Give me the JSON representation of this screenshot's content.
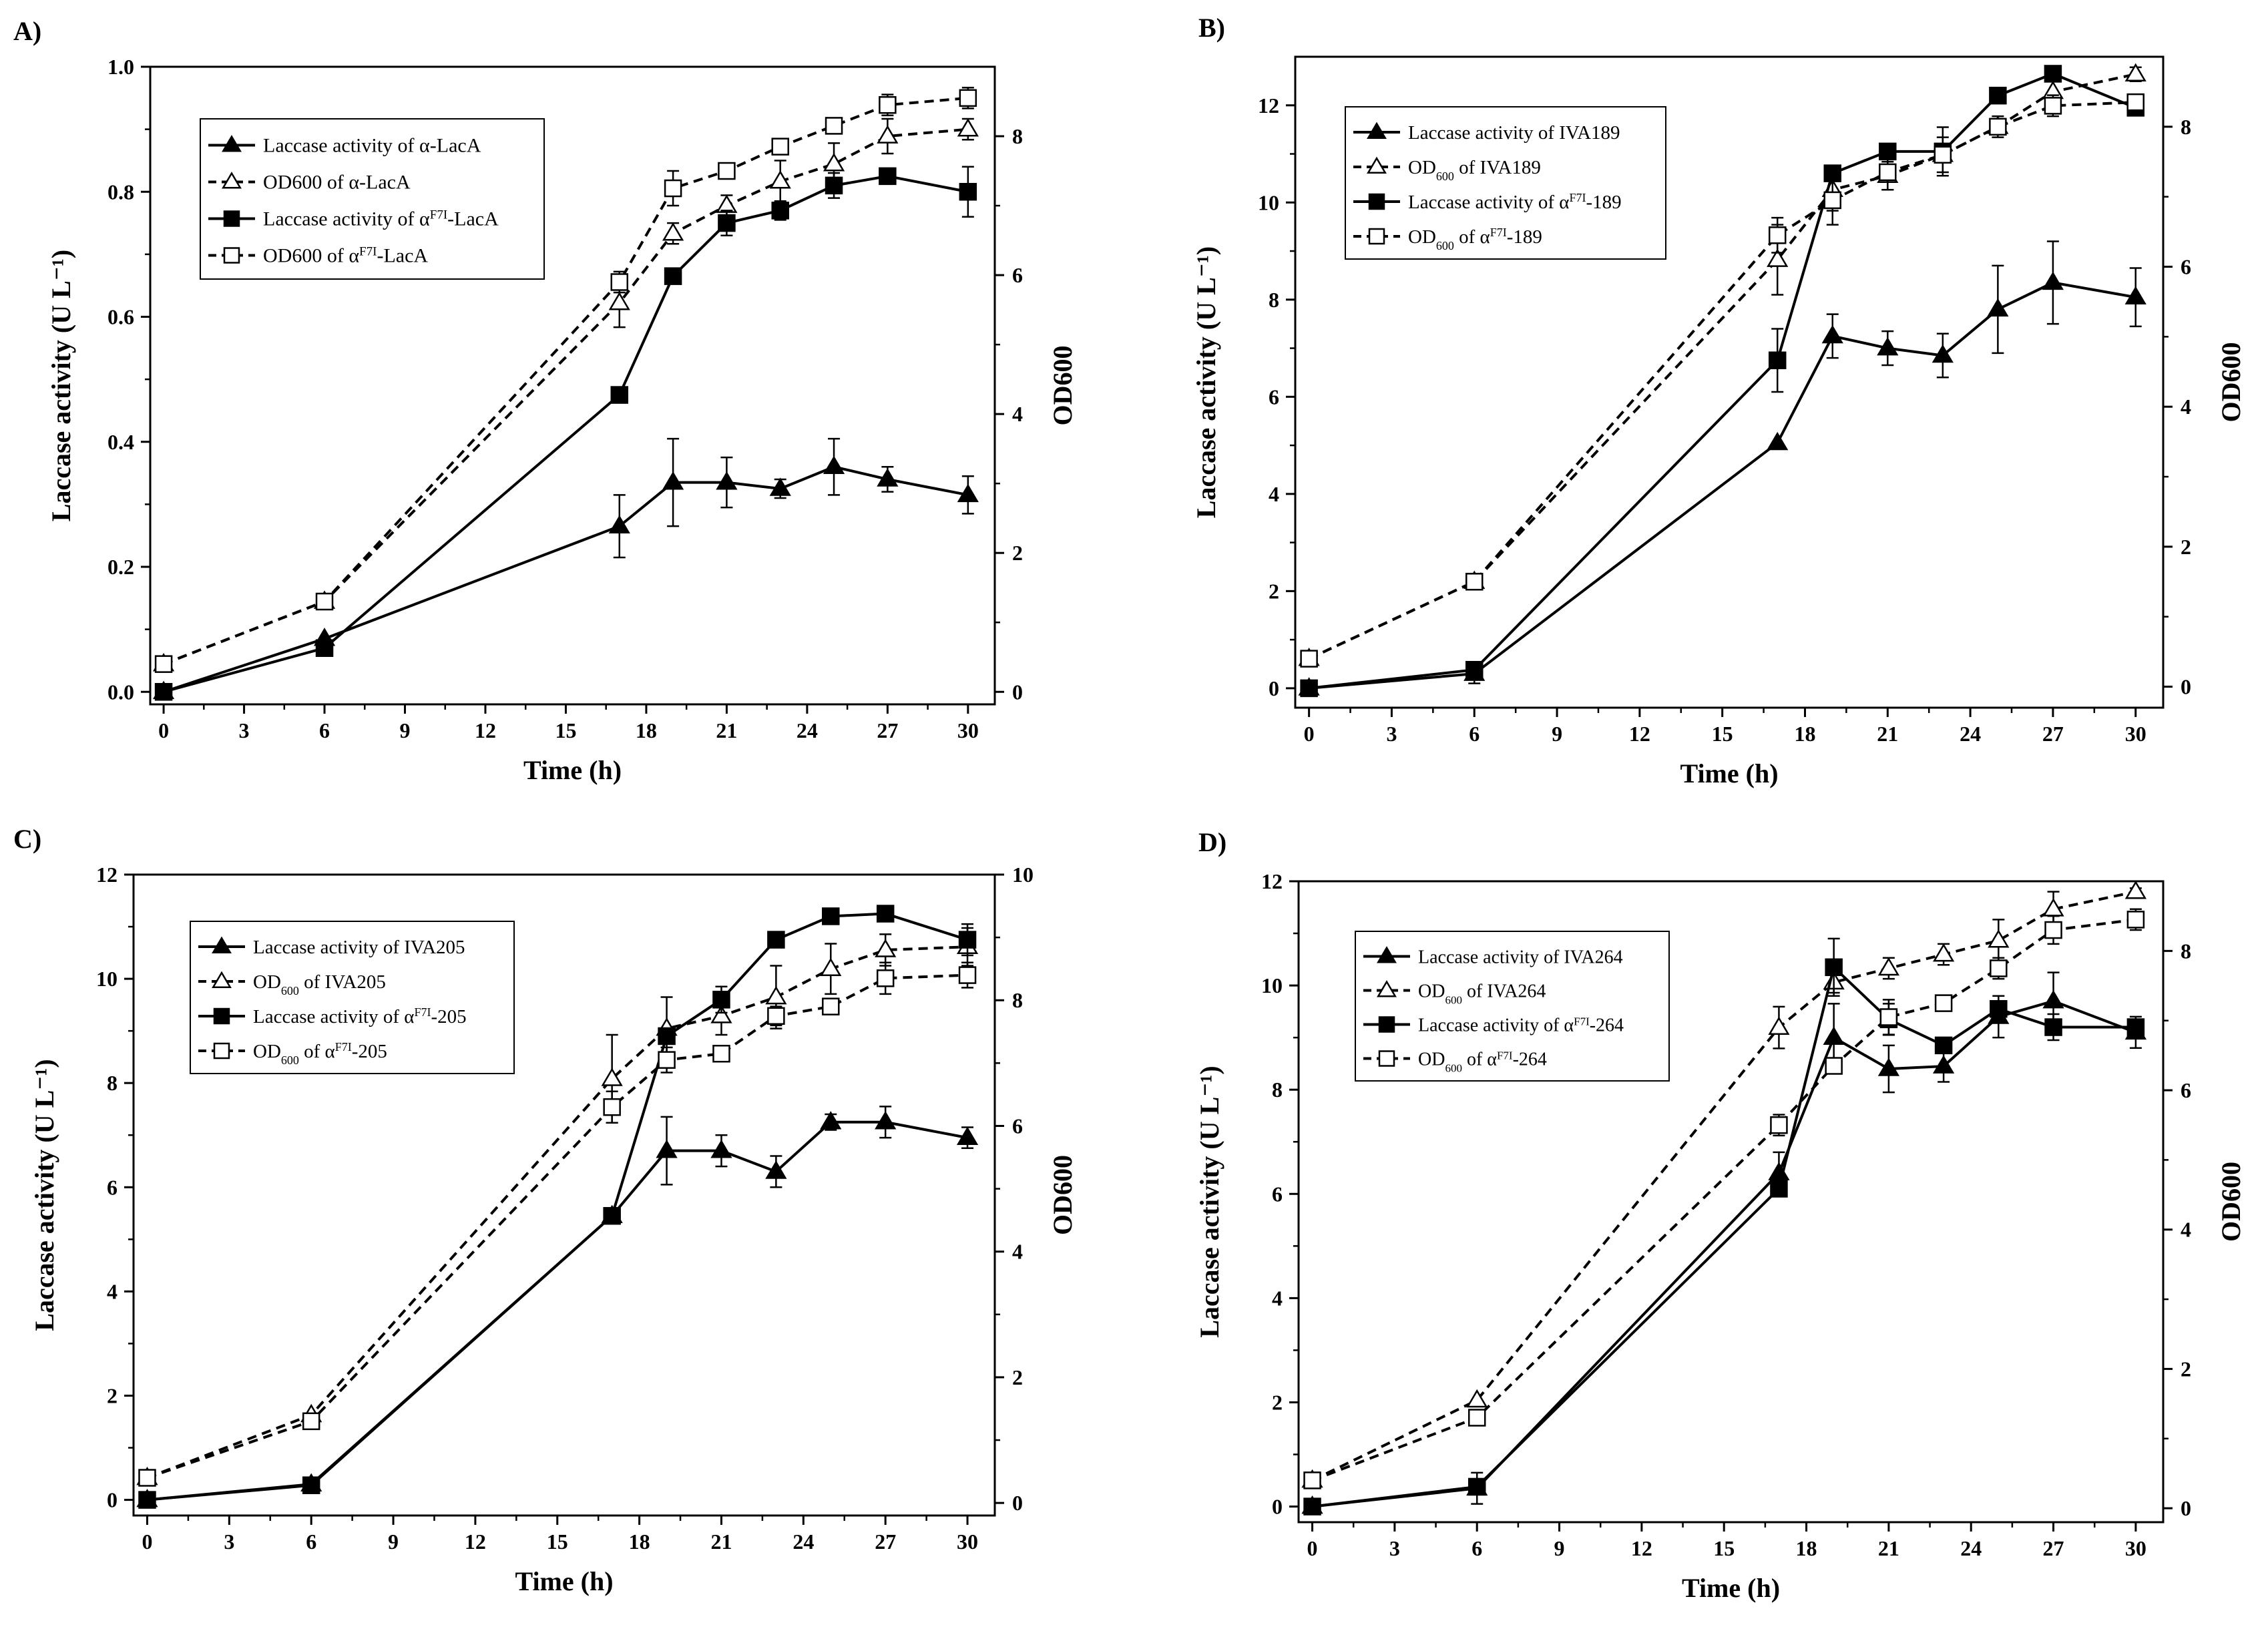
{
  "figure": {
    "colors": {
      "ink": "#000000",
      "background": "#ffffff"
    }
  },
  "chart_data": [
    {
      "type": "line",
      "panel_label": "A)",
      "xlabel": "Time (h)",
      "ylabel": "Laccase activity (U L⁻¹)",
      "y2label": "OD600",
      "xlim": [
        -0.5,
        31
      ],
      "ylim": [
        -0.02,
        1.0
      ],
      "y2lim": [
        -0.18,
        9.0
      ],
      "xticks": [
        0,
        3,
        6,
        9,
        12,
        15,
        18,
        21,
        24,
        27,
        30
      ],
      "xtick_labels": [
        "0",
        "3",
        "6",
        "9",
        "12",
        "15",
        "18",
        "21",
        "24",
        "27",
        "30"
      ],
      "yticks": [
        0.0,
        0.2,
        0.4,
        0.6,
        0.8,
        1.0
      ],
      "ytick_labels": [
        "0.0",
        "0.2",
        "0.4",
        "0.6",
        "0.8",
        "1.0"
      ],
      "y2ticks": [
        0,
        2,
        4,
        6,
        8
      ],
      "y2tick_labels": [
        "0",
        "2",
        "4",
        "6",
        "8"
      ],
      "legend_position": "top-left",
      "series": [
        {
          "name": "Laccase activity of α-LacA",
          "legend_parts": [
            "Laccase activity of α-LacA"
          ],
          "axis": "left",
          "marker": "filled-triangle",
          "dash": "solid",
          "x": [
            0,
            6,
            17,
            19,
            21,
            23,
            25,
            27,
            30
          ],
          "values": [
            0.0,
            0.085,
            0.265,
            0.335,
            0.335,
            0.325,
            0.36,
            0.34,
            0.315
          ],
          "errors": [
            0,
            0,
            0.05,
            0.07,
            0.04,
            0.015,
            0.045,
            0.02,
            0.03
          ]
        },
        {
          "name": "OD600 of α-LacA",
          "legend_parts": [
            "OD600 of α-LacA"
          ],
          "axis": "right",
          "marker": "open-triangle",
          "dash": "dashed",
          "x": [
            0,
            6,
            17,
            19,
            21,
            23,
            25,
            27,
            30
          ],
          "values": [
            0.4,
            1.3,
            5.6,
            6.6,
            7.0,
            7.35,
            7.6,
            8.0,
            8.1
          ],
          "errors": [
            0,
            0,
            0.35,
            0.15,
            0.15,
            0.3,
            0.3,
            0.25,
            0.15
          ]
        },
        {
          "name": "Laccase activity of αF7I-LacA",
          "legend_parts": [
            "Laccase activity of α",
            "F7I",
            "-LacA"
          ],
          "axis": "left",
          "marker": "filled-square",
          "dash": "solid",
          "x": [
            0,
            6,
            17,
            19,
            21,
            23,
            25,
            27,
            30
          ],
          "values": [
            0.0,
            0.07,
            0.475,
            0.665,
            0.75,
            0.77,
            0.81,
            0.825,
            0.8
          ],
          "errors": [
            0,
            0,
            0,
            0,
            0.02,
            0.015,
            0.02,
            0,
            0.04
          ]
        },
        {
          "name": "OD600 of αF7I-LacA",
          "legend_parts": [
            "OD600 of α",
            "F7I",
            "-LacA"
          ],
          "axis": "right",
          "marker": "open-square",
          "dash": "dashed",
          "x": [
            0,
            6,
            17,
            19,
            21,
            23,
            25,
            27,
            30
          ],
          "values": [
            0.4,
            1.3,
            5.9,
            7.25,
            7.5,
            7.85,
            8.15,
            8.45,
            8.55
          ],
          "errors": [
            0,
            0,
            0.15,
            0.25,
            0.1,
            0.05,
            0.05,
            0.15,
            0.15
          ]
        }
      ]
    },
    {
      "type": "line",
      "panel_label": "B)",
      "xlabel": "Time (h)",
      "ylabel": "Laccase activity (U L⁻¹)",
      "y2label": "OD600",
      "xlim": [
        -0.5,
        31
      ],
      "ylim": [
        -0.4,
        13.0
      ],
      "y2lim": [
        -0.3,
        9.0
      ],
      "xticks": [
        0,
        3,
        6,
        9,
        12,
        15,
        18,
        21,
        24,
        27,
        30
      ],
      "xtick_labels": [
        "0",
        "3",
        "6",
        "9",
        "12",
        "15",
        "18",
        "21",
        "24",
        "27",
        "30"
      ],
      "yticks": [
        0,
        2,
        4,
        6,
        8,
        10,
        12
      ],
      "ytick_labels": [
        "0",
        "2",
        "4",
        "6",
        "8",
        "10",
        "12"
      ],
      "y2ticks": [
        0,
        2,
        4,
        6,
        8
      ],
      "y2tick_labels": [
        "0",
        "2",
        "4",
        "6",
        "8"
      ],
      "legend_position": "top-left",
      "series": [
        {
          "name": "Laccase activity of IVA189",
          "legend_parts": [
            "Laccase activity of IVA189"
          ],
          "axis": "left",
          "marker": "filled-triangle",
          "dash": "solid",
          "x": [
            0,
            6,
            17,
            19,
            21,
            23,
            25,
            27,
            30
          ],
          "values": [
            0.0,
            0.3,
            5.05,
            7.25,
            7.0,
            6.85,
            7.8,
            8.35,
            8.05
          ],
          "errors": [
            0,
            0.2,
            0,
            0.45,
            0.35,
            0.45,
            0.9,
            0.85,
            0.6
          ]
        },
        {
          "name": "OD600 of IVA189",
          "legend_parts": [
            "OD",
            "600",
            " of IVA189"
          ],
          "axis": "right",
          "marker": "open-triangle",
          "dash": "dashed",
          "x": [
            0,
            6,
            17,
            19,
            21,
            23,
            25,
            27,
            30
          ],
          "values": [
            0.4,
            1.5,
            6.1,
            7.1,
            7.3,
            7.6,
            8.0,
            8.5,
            8.75
          ],
          "errors": [
            0,
            0,
            0.5,
            0.3,
            0.2,
            0.25,
            0.15,
            0.2,
            0.1
          ]
        },
        {
          "name": "Laccase activity of αF7I-189",
          "legend_parts": [
            "Laccase activity of α",
            "F7I",
            "-189"
          ],
          "axis": "left",
          "marker": "filled-square",
          "dash": "solid",
          "x": [
            0,
            6,
            17,
            19,
            21,
            23,
            25,
            27,
            30
          ],
          "values": [
            0.0,
            0.38,
            6.75,
            10.6,
            11.05,
            11.05,
            12.2,
            12.65,
            11.95
          ],
          "errors": [
            0,
            0,
            0.65,
            0,
            0,
            0.5,
            0,
            0,
            0
          ]
        },
        {
          "name": "OD600 of αF7I-189",
          "legend_parts": [
            "OD",
            "600",
            " of α",
            "F7I",
            "-189"
          ],
          "axis": "right",
          "marker": "open-square",
          "dash": "dashed",
          "x": [
            0,
            6,
            17,
            19,
            21,
            23,
            25,
            27,
            30
          ],
          "values": [
            0.4,
            1.5,
            6.45,
            6.95,
            7.35,
            7.6,
            8.0,
            8.3,
            8.35
          ],
          "errors": [
            0,
            0,
            0.25,
            0.35,
            0.25,
            0.1,
            0.1,
            0.15,
            0.1
          ]
        }
      ]
    },
    {
      "type": "line",
      "panel_label": "C)",
      "xlabel": "Time (h)",
      "ylabel": "Laccase activity (U L⁻¹)",
      "y2label": "OD600",
      "xlim": [
        -0.5,
        31
      ],
      "ylim": [
        -0.3,
        12.0
      ],
      "y2lim": [
        -0.2,
        10.0
      ],
      "xticks": [
        0,
        3,
        6,
        9,
        12,
        15,
        18,
        21,
        24,
        27,
        30
      ],
      "xtick_labels": [
        "0",
        "3",
        "6",
        "9",
        "12",
        "15",
        "18",
        "21",
        "24",
        "27",
        "30"
      ],
      "yticks": [
        0,
        2,
        4,
        6,
        8,
        10,
        12
      ],
      "ytick_labels": [
        "0",
        "2",
        "4",
        "6",
        "8",
        "10",
        "12"
      ],
      "y2ticks": [
        0,
        2,
        4,
        6,
        8,
        10
      ],
      "y2tick_labels": [
        "0",
        "2",
        "4",
        "6",
        "8",
        "10"
      ],
      "legend_position": "top-left",
      "series": [
        {
          "name": "Laccase activity of IVA205",
          "legend_parts": [
            "Laccase activity of IVA205"
          ],
          "axis": "left",
          "marker": "filled-triangle",
          "dash": "solid",
          "x": [
            0,
            6,
            17,
            19,
            21,
            23,
            25,
            27,
            30
          ],
          "values": [
            0.0,
            0.3,
            5.45,
            6.7,
            6.7,
            6.3,
            7.25,
            7.25,
            6.95
          ],
          "errors": [
            0,
            0,
            0,
            0.65,
            0.3,
            0.3,
            0.15,
            0.3,
            0.2
          ]
        },
        {
          "name": "OD600 of IVA205",
          "legend_parts": [
            "OD",
            "600",
            " of IVA205"
          ],
          "axis": "right",
          "marker": "open-triangle",
          "dash": "dashed",
          "x": [
            0,
            6,
            17,
            19,
            21,
            23,
            25,
            27,
            30
          ],
          "values": [
            0.4,
            1.4,
            6.75,
            7.55,
            7.75,
            8.05,
            8.5,
            8.8,
            8.85
          ],
          "errors": [
            0,
            0,
            0.7,
            0.5,
            0.3,
            0.5,
            0.4,
            0.25,
            0.3
          ]
        },
        {
          "name": "Laccase activity of αF7I-205",
          "legend_parts": [
            "Laccase activity of α",
            "F7I",
            "-205"
          ],
          "axis": "left",
          "marker": "filled-square",
          "dash": "solid",
          "x": [
            0,
            6,
            17,
            19,
            21,
            23,
            25,
            27,
            30
          ],
          "values": [
            0.0,
            0.28,
            5.45,
            8.9,
            9.6,
            10.75,
            11.2,
            11.25,
            10.75
          ],
          "errors": [
            0,
            0,
            0,
            0,
            0.25,
            0,
            0,
            0,
            0.3
          ]
        },
        {
          "name": "OD600 of αF7I-205",
          "legend_parts": [
            "OD",
            "600",
            " of α",
            "F7I",
            "-205"
          ],
          "axis": "right",
          "marker": "open-square",
          "dash": "dashed",
          "x": [
            0,
            6,
            17,
            19,
            21,
            23,
            25,
            27,
            30
          ],
          "values": [
            0.4,
            1.3,
            6.3,
            7.05,
            7.15,
            7.75,
            7.9,
            8.35,
            8.4
          ],
          "errors": [
            0,
            0,
            0.25,
            0.2,
            0.1,
            0.15,
            0.1,
            0.25,
            0.2
          ]
        }
      ]
    },
    {
      "type": "line",
      "panel_label": "D)",
      "xlabel": "Time (h)",
      "ylabel": "Laccase activity (U L⁻¹)",
      "y2label": "OD600",
      "xlim": [
        -0.5,
        31
      ],
      "ylim": [
        -0.3,
        12.0
      ],
      "y2lim": [
        -0.2,
        9.0
      ],
      "xticks": [
        0,
        3,
        6,
        9,
        12,
        15,
        18,
        21,
        24,
        27,
        30
      ],
      "xtick_labels": [
        "0",
        "3",
        "6",
        "9",
        "12",
        "15",
        "18",
        "21",
        "24",
        "27",
        "30"
      ],
      "yticks": [
        0,
        2,
        4,
        6,
        8,
        10,
        12
      ],
      "ytick_labels": [
        "0",
        "2",
        "4",
        "6",
        "8",
        "10",
        "12"
      ],
      "y2ticks": [
        0,
        2,
        4,
        6,
        8
      ],
      "y2tick_labels": [
        "0",
        "2",
        "4",
        "6",
        "8"
      ],
      "legend_position": "top-left",
      "series": [
        {
          "name": "Laccase activity of IVA264",
          "legend_parts": [
            "Laccase activity of IVA264"
          ],
          "axis": "left",
          "marker": "filled-triangle",
          "dash": "solid",
          "x": [
            0,
            6,
            17,
            19,
            21,
            23,
            25,
            27,
            30
          ],
          "values": [
            0.0,
            0.35,
            6.4,
            9.0,
            8.4,
            8.45,
            9.4,
            9.7,
            9.1
          ],
          "errors": [
            0,
            0.3,
            0.4,
            0.65,
            0.45,
            0.3,
            0.4,
            0.55,
            0.3
          ]
        },
        {
          "name": "OD600 of IVA264",
          "legend_parts": [
            "OD",
            "600",
            " of IVA264"
          ],
          "axis": "right",
          "marker": "open-triangle",
          "dash": "dashed",
          "x": [
            0,
            6,
            17,
            19,
            21,
            23,
            25,
            27,
            30
          ],
          "values": [
            0.4,
            1.55,
            6.9,
            7.55,
            7.75,
            7.95,
            8.15,
            8.6,
            8.85
          ],
          "errors": [
            0,
            0,
            0.3,
            0.15,
            0.15,
            0.15,
            0.3,
            0.25,
            0.05
          ]
        },
        {
          "name": "Laccase activity of αF7I-264",
          "legend_parts": [
            "Laccase activity of α",
            "F7I",
            "-264"
          ],
          "axis": "left",
          "marker": "filled-square",
          "dash": "solid",
          "x": [
            0,
            6,
            17,
            19,
            21,
            23,
            25,
            27,
            30
          ],
          "values": [
            0.0,
            0.38,
            6.1,
            10.35,
            9.35,
            8.85,
            9.55,
            9.2,
            9.2
          ],
          "errors": [
            0,
            0,
            0,
            0.55,
            0.3,
            0,
            0,
            0.25,
            0
          ]
        },
        {
          "name": "OD600 of αF7I-264",
          "legend_parts": [
            "OD",
            "600",
            " of α",
            "F7I",
            "-264"
          ],
          "axis": "right",
          "marker": "open-square",
          "dash": "dashed",
          "x": [
            0,
            6,
            17,
            19,
            21,
            23,
            25,
            27,
            30
          ],
          "values": [
            0.4,
            1.3,
            5.5,
            6.35,
            7.05,
            7.25,
            7.75,
            8.3,
            8.45
          ],
          "errors": [
            0,
            0,
            0.15,
            0.1,
            0.25,
            0.1,
            0.15,
            0.2,
            0.15
          ]
        }
      ]
    }
  ]
}
